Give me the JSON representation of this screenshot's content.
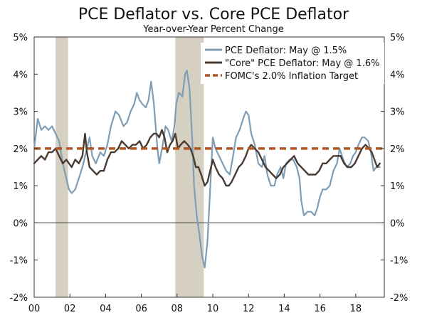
{
  "chart_data": {
    "type": "line",
    "title": "PCE Deflator vs. Core PCE Deflator",
    "subtitle": "Year-over-Year Percent Change",
    "xlim": [
      2000.0,
      2019.6
    ],
    "ylim": [
      -2,
      5
    ],
    "x_ticks": [
      {
        "value": 2000,
        "label": "00"
      },
      {
        "value": 2002,
        "label": "02"
      },
      {
        "value": 2004,
        "label": "04"
      },
      {
        "value": 2006,
        "label": "06"
      },
      {
        "value": 2008,
        "label": "08"
      },
      {
        "value": 2010,
        "label": "10"
      },
      {
        "value": 2012,
        "label": "12"
      },
      {
        "value": 2014,
        "label": "14"
      },
      {
        "value": 2016,
        "label": "16"
      },
      {
        "value": 2018,
        "label": "18"
      }
    ],
    "y_ticks": [
      {
        "value": 5,
        "label": "5%"
      },
      {
        "value": 4,
        "label": "4%"
      },
      {
        "value": 3,
        "label": "3%"
      },
      {
        "value": 2,
        "label": "2%"
      },
      {
        "value": 1,
        "label": "1%"
      },
      {
        "value": 0,
        "label": "0%"
      },
      {
        "value": -1,
        "label": "-1%"
      },
      {
        "value": -2,
        "label": "-2%"
      }
    ],
    "recessions": [
      {
        "start": 2001.2,
        "end": 2001.9
      },
      {
        "start": 2007.9,
        "end": 2009.5
      }
    ],
    "legend_placement": "top-right",
    "series": [
      {
        "name": "PCE Deflator: May @ 1.5%",
        "color": "#7f9db5",
        "points": [
          [
            2000.0,
            2.0
          ],
          [
            2000.2,
            2.8
          ],
          [
            2000.4,
            2.5
          ],
          [
            2000.6,
            2.6
          ],
          [
            2000.8,
            2.5
          ],
          [
            2001.0,
            2.6
          ],
          [
            2001.2,
            2.4
          ],
          [
            2001.4,
            2.2
          ],
          [
            2001.6,
            1.6
          ],
          [
            2001.8,
            1.2
          ],
          [
            2001.95,
            0.9
          ],
          [
            2002.1,
            0.8
          ],
          [
            2002.3,
            0.9
          ],
          [
            2002.5,
            1.2
          ],
          [
            2002.7,
            1.5
          ],
          [
            2002.9,
            1.9
          ],
          [
            2003.1,
            2.3
          ],
          [
            2003.25,
            1.8
          ],
          [
            2003.45,
            1.6
          ],
          [
            2003.7,
            1.9
          ],
          [
            2003.9,
            1.8
          ],
          [
            2004.1,
            2.1
          ],
          [
            2004.3,
            2.6
          ],
          [
            2004.55,
            3.0
          ],
          [
            2004.75,
            2.9
          ],
          [
            2005.0,
            2.6
          ],
          [
            2005.2,
            2.7
          ],
          [
            2005.4,
            3.0
          ],
          [
            2005.6,
            3.2
          ],
          [
            2005.75,
            3.5
          ],
          [
            2005.9,
            3.3
          ],
          [
            2006.05,
            3.2
          ],
          [
            2006.25,
            3.1
          ],
          [
            2006.4,
            3.3
          ],
          [
            2006.55,
            3.8
          ],
          [
            2006.7,
            3.2
          ],
          [
            2006.9,
            2.0
          ],
          [
            2007.0,
            1.6
          ],
          [
            2007.2,
            2.1
          ],
          [
            2007.35,
            2.6
          ],
          [
            2007.5,
            2.5
          ],
          [
            2007.7,
            2.2
          ],
          [
            2007.85,
            2.6
          ],
          [
            2007.95,
            3.2
          ],
          [
            2008.1,
            3.5
          ],
          [
            2008.3,
            3.4
          ],
          [
            2008.45,
            4.0
          ],
          [
            2008.55,
            4.1
          ],
          [
            2008.7,
            3.6
          ],
          [
            2008.85,
            2.2
          ],
          [
            2008.95,
            1.0
          ],
          [
            2009.1,
            0.2
          ],
          [
            2009.25,
            -0.3
          ],
          [
            2009.4,
            -0.9
          ],
          [
            2009.55,
            -1.2
          ],
          [
            2009.7,
            -0.5
          ],
          [
            2009.85,
            0.9
          ],
          [
            2010.0,
            2.3
          ],
          [
            2010.15,
            2.0
          ],
          [
            2010.35,
            1.8
          ],
          [
            2010.55,
            1.6
          ],
          [
            2010.75,
            1.4
          ],
          [
            2010.95,
            1.3
          ],
          [
            2011.1,
            1.7
          ],
          [
            2011.3,
            2.3
          ],
          [
            2011.5,
            2.5
          ],
          [
            2011.7,
            2.8
          ],
          [
            2011.85,
            3.0
          ],
          [
            2012.0,
            2.9
          ],
          [
            2012.15,
            2.4
          ],
          [
            2012.35,
            2.1
          ],
          [
            2012.55,
            1.6
          ],
          [
            2012.75,
            1.5
          ],
          [
            2012.9,
            1.8
          ],
          [
            2013.05,
            1.3
          ],
          [
            2013.25,
            1.0
          ],
          [
            2013.45,
            1.0
          ],
          [
            2013.6,
            1.3
          ],
          [
            2013.8,
            1.5
          ],
          [
            2013.95,
            1.2
          ],
          [
            2014.1,
            1.6
          ],
          [
            2014.3,
            1.7
          ],
          [
            2014.5,
            1.7
          ],
          [
            2014.7,
            1.5
          ],
          [
            2014.85,
            1.2
          ],
          [
            2014.95,
            0.6
          ],
          [
            2015.1,
            0.2
          ],
          [
            2015.3,
            0.3
          ],
          [
            2015.5,
            0.3
          ],
          [
            2015.7,
            0.2
          ],
          [
            2015.85,
            0.4
          ],
          [
            2016.0,
            0.7
          ],
          [
            2016.15,
            0.9
          ],
          [
            2016.35,
            0.9
          ],
          [
            2016.55,
            1.0
          ],
          [
            2016.75,
            1.4
          ],
          [
            2016.95,
            1.6
          ],
          [
            2017.1,
            2.0
          ],
          [
            2017.3,
            1.7
          ],
          [
            2017.5,
            1.5
          ],
          [
            2017.7,
            1.6
          ],
          [
            2017.85,
            1.8
          ],
          [
            2018.0,
            1.9
          ],
          [
            2018.15,
            2.1
          ],
          [
            2018.35,
            2.3
          ],
          [
            2018.5,
            2.3
          ],
          [
            2018.7,
            2.2
          ],
          [
            2018.85,
            1.9
          ],
          [
            2019.0,
            1.4
          ],
          [
            2019.15,
            1.5
          ],
          [
            2019.35,
            1.5
          ]
        ]
      },
      {
        "name": "\"Core\" PCE Deflator: May @ 1.6%",
        "color": "#4a3b32",
        "points": [
          [
            2000.0,
            1.6
          ],
          [
            2000.2,
            1.7
          ],
          [
            2000.4,
            1.8
          ],
          [
            2000.6,
            1.7
          ],
          [
            2000.8,
            1.9
          ],
          [
            2001.0,
            1.9
          ],
          [
            2001.2,
            2.0
          ],
          [
            2001.4,
            1.8
          ],
          [
            2001.6,
            1.6
          ],
          [
            2001.8,
            1.7
          ],
          [
            2001.95,
            1.6
          ],
          [
            2002.1,
            1.5
          ],
          [
            2002.3,
            1.7
          ],
          [
            2002.5,
            1.6
          ],
          [
            2002.7,
            1.8
          ],
          [
            2002.85,
            2.4
          ],
          [
            2002.95,
            1.9
          ],
          [
            2003.1,
            1.5
          ],
          [
            2003.3,
            1.4
          ],
          [
            2003.5,
            1.3
          ],
          [
            2003.7,
            1.4
          ],
          [
            2003.9,
            1.4
          ],
          [
            2004.1,
            1.7
          ],
          [
            2004.3,
            1.9
          ],
          [
            2004.5,
            1.9
          ],
          [
            2004.7,
            2.0
          ],
          [
            2004.9,
            2.2
          ],
          [
            2005.1,
            2.1
          ],
          [
            2005.3,
            2.0
          ],
          [
            2005.5,
            2.1
          ],
          [
            2005.7,
            2.1
          ],
          [
            2005.9,
            2.2
          ],
          [
            2006.1,
            2.0
          ],
          [
            2006.3,
            2.1
          ],
          [
            2006.5,
            2.3
          ],
          [
            2006.7,
            2.4
          ],
          [
            2006.85,
            2.4
          ],
          [
            2007.0,
            2.3
          ],
          [
            2007.15,
            2.5
          ],
          [
            2007.3,
            2.3
          ],
          [
            2007.45,
            1.9
          ],
          [
            2007.6,
            2.1
          ],
          [
            2007.75,
            2.2
          ],
          [
            2007.9,
            2.4
          ],
          [
            2008.05,
            2.0
          ],
          [
            2008.2,
            2.1
          ],
          [
            2008.4,
            2.2
          ],
          [
            2008.6,
            2.1
          ],
          [
            2008.75,
            2.0
          ],
          [
            2008.9,
            1.8
          ],
          [
            2009.05,
            1.5
          ],
          [
            2009.2,
            1.5
          ],
          [
            2009.35,
            1.3
          ],
          [
            2009.55,
            1.0
          ],
          [
            2009.7,
            1.1
          ],
          [
            2009.85,
            1.4
          ],
          [
            2010.0,
            1.7
          ],
          [
            2010.15,
            1.5
          ],
          [
            2010.35,
            1.3
          ],
          [
            2010.55,
            1.2
          ],
          [
            2010.75,
            1.0
          ],
          [
            2010.9,
            1.0
          ],
          [
            2011.05,
            1.1
          ],
          [
            2011.25,
            1.3
          ],
          [
            2011.45,
            1.5
          ],
          [
            2011.65,
            1.6
          ],
          [
            2011.85,
            1.8
          ],
          [
            2012.0,
            2.0
          ],
          [
            2012.15,
            2.1
          ],
          [
            2012.35,
            2.0
          ],
          [
            2012.55,
            1.9
          ],
          [
            2012.75,
            1.7
          ],
          [
            2012.95,
            1.5
          ],
          [
            2013.15,
            1.4
          ],
          [
            2013.35,
            1.3
          ],
          [
            2013.55,
            1.2
          ],
          [
            2013.75,
            1.3
          ],
          [
            2013.95,
            1.5
          ],
          [
            2014.15,
            1.6
          ],
          [
            2014.35,
            1.7
          ],
          [
            2014.55,
            1.8
          ],
          [
            2014.75,
            1.6
          ],
          [
            2014.95,
            1.5
          ],
          [
            2015.15,
            1.4
          ],
          [
            2015.35,
            1.3
          ],
          [
            2015.55,
            1.3
          ],
          [
            2015.75,
            1.3
          ],
          [
            2015.95,
            1.4
          ],
          [
            2016.15,
            1.6
          ],
          [
            2016.35,
            1.6
          ],
          [
            2016.55,
            1.7
          ],
          [
            2016.75,
            1.8
          ],
          [
            2016.95,
            1.8
          ],
          [
            2017.15,
            1.8
          ],
          [
            2017.35,
            1.6
          ],
          [
            2017.55,
            1.5
          ],
          [
            2017.75,
            1.5
          ],
          [
            2017.95,
            1.6
          ],
          [
            2018.15,
            1.8
          ],
          [
            2018.35,
            2.0
          ],
          [
            2018.55,
            2.1
          ],
          [
            2018.75,
            2.0
          ],
          [
            2018.9,
            1.9
          ],
          [
            2019.05,
            1.7
          ],
          [
            2019.2,
            1.5
          ],
          [
            2019.35,
            1.6
          ]
        ]
      },
      {
        "name": "FOMC's 2.0% Inflation Target",
        "color": "#b0561e",
        "style": "dashed",
        "points": [
          [
            2000.0,
            2.0
          ],
          [
            2019.6,
            2.0
          ]
        ]
      }
    ]
  }
}
